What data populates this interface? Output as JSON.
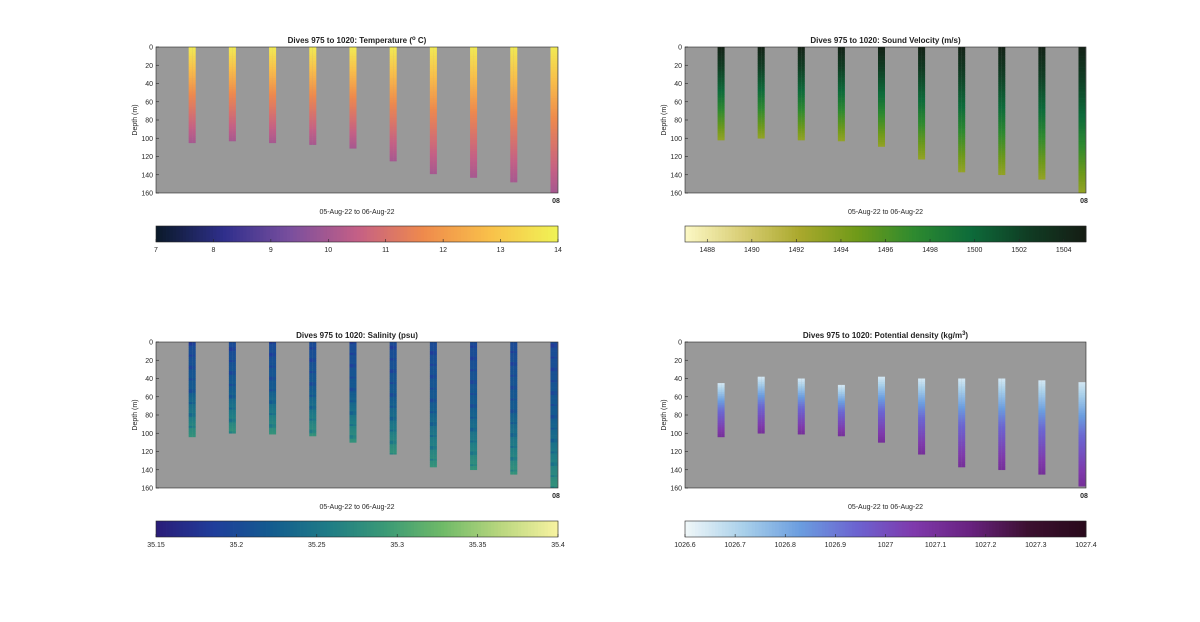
{
  "chart_data": [
    {
      "id": "temperature",
      "type": "heatmap",
      "title": "Dives 975 to 1020: Temperature (",
      "title_sup": "o",
      "title_tail": " C)",
      "ylabel": "Depth (m)",
      "xlabel": "05-Aug-22 to 06-Aug-22",
      "xtick_label": "08",
      "ylim": [
        0,
        160
      ],
      "yticks": [
        "0",
        "20",
        "40",
        "60",
        "80",
        "100",
        "120",
        "140",
        "160"
      ],
      "colormap": [
        "#0b1a2b",
        "#2f2f8c",
        "#7a4f9e",
        "#c45f86",
        "#ef8a4c",
        "#f9c04a",
        "#f0f255"
      ],
      "clim": [
        7,
        14
      ],
      "colorbar_ticks": [
        "7",
        "8",
        "9",
        "10",
        "11",
        "12",
        "13",
        "14"
      ],
      "background": "#999999",
      "casts": [
        {
          "t": 0.09,
          "bottom": 105,
          "surface": 13.8,
          "mid": 11.6,
          "deep": 10.0
        },
        {
          "t": 0.19,
          "bottom": 103,
          "surface": 13.8,
          "mid": 11.6,
          "deep": 10.0
        },
        {
          "t": 0.29,
          "bottom": 105,
          "surface": 13.8,
          "mid": 11.6,
          "deep": 10.0
        },
        {
          "t": 0.39,
          "bottom": 107,
          "surface": 13.8,
          "mid": 11.6,
          "deep": 10.0
        },
        {
          "t": 0.49,
          "bottom": 111,
          "surface": 13.8,
          "mid": 11.6,
          "deep": 10.0
        },
        {
          "t": 0.59,
          "bottom": 125,
          "surface": 13.8,
          "mid": 11.6,
          "deep": 10.0
        },
        {
          "t": 0.69,
          "bottom": 139,
          "surface": 13.8,
          "mid": 11.6,
          "deep": 10.0
        },
        {
          "t": 0.79,
          "bottom": 143,
          "surface": 13.8,
          "mid": 11.6,
          "deep": 10.0
        },
        {
          "t": 0.89,
          "bottom": 148,
          "surface": 13.8,
          "mid": 11.6,
          "deep": 10.0
        },
        {
          "t": 0.99,
          "bottom": 160,
          "surface": 13.8,
          "mid": 11.6,
          "deep": 10.0
        }
      ]
    },
    {
      "id": "sound-velocity",
      "type": "heatmap",
      "title": "Dives 975 to 1020: Sound Velocity (m/s)",
      "ylabel": "Depth (m)",
      "xlabel": "05-Aug-22 to 06-Aug-22",
      "xtick_label": "08",
      "ylim": [
        0,
        160
      ],
      "yticks": [
        "0",
        "20",
        "40",
        "60",
        "80",
        "100",
        "120",
        "140",
        "160"
      ],
      "colormap": [
        "#fbf7c3",
        "#d8cd73",
        "#a9a82c",
        "#6f9a19",
        "#2e8a2f",
        "#0d6b3a",
        "#103d24",
        "#151d14"
      ],
      "clim": [
        1487,
        1505
      ],
      "colorbar_ticks": [
        "1488",
        "1490",
        "1492",
        "1494",
        "1496",
        "1498",
        "1500",
        "1502",
        "1504"
      ],
      "background": "#999999",
      "casts": [
        {
          "t": 0.09,
          "bottom": 102,
          "surface": 1504.5,
          "mid": 1499.5,
          "deep": 1493.0
        },
        {
          "t": 0.19,
          "bottom": 100,
          "surface": 1504.5,
          "mid": 1499.5,
          "deep": 1493.0
        },
        {
          "t": 0.29,
          "bottom": 102,
          "surface": 1504.5,
          "mid": 1499.5,
          "deep": 1493.0
        },
        {
          "t": 0.39,
          "bottom": 103,
          "surface": 1504.5,
          "mid": 1499.5,
          "deep": 1493.0
        },
        {
          "t": 0.49,
          "bottom": 109,
          "surface": 1504.5,
          "mid": 1499.5,
          "deep": 1493.0
        },
        {
          "t": 0.59,
          "bottom": 123,
          "surface": 1504.5,
          "mid": 1499.5,
          "deep": 1493.0
        },
        {
          "t": 0.69,
          "bottom": 137,
          "surface": 1504.5,
          "mid": 1499.5,
          "deep": 1493.0
        },
        {
          "t": 0.79,
          "bottom": 140,
          "surface": 1504.5,
          "mid": 1499.5,
          "deep": 1493.0
        },
        {
          "t": 0.89,
          "bottom": 145,
          "surface": 1504.5,
          "mid": 1499.5,
          "deep": 1493.0
        },
        {
          "t": 0.99,
          "bottom": 160,
          "surface": 1504.5,
          "mid": 1499.5,
          "deep": 1493.0
        }
      ]
    },
    {
      "id": "salinity",
      "type": "heatmap",
      "title": "Dives 975 to 1020: Salinity (psu)",
      "ylabel": "Depth (m)",
      "xlabel": "05-Aug-22 to 06-Aug-22",
      "xtick_label": "08",
      "ylim": [
        0,
        160
      ],
      "yticks": [
        "0",
        "20",
        "40",
        "60",
        "80",
        "100",
        "120",
        "140",
        "160"
      ],
      "colormap": [
        "#2a1d79",
        "#1f3e9b",
        "#135c8f",
        "#1f7c86",
        "#3b9a76",
        "#6fba68",
        "#b8d67e",
        "#f6f2a0"
      ],
      "clim": [
        35.15,
        35.4
      ],
      "colorbar_ticks": [
        "35.15",
        "35.2",
        "35.25",
        "35.3",
        "35.35",
        "35.4"
      ],
      "background": "#999999",
      "casts": [
        {
          "t": 0.09,
          "bottom": 104,
          "surface": 35.2,
          "mid": 35.22,
          "deep": 35.285
        },
        {
          "t": 0.19,
          "bottom": 100,
          "surface": 35.2,
          "mid": 35.22,
          "deep": 35.285
        },
        {
          "t": 0.29,
          "bottom": 101,
          "surface": 35.2,
          "mid": 35.22,
          "deep": 35.285
        },
        {
          "t": 0.39,
          "bottom": 103,
          "surface": 35.2,
          "mid": 35.22,
          "deep": 35.285
        },
        {
          "t": 0.49,
          "bottom": 110,
          "surface": 35.2,
          "mid": 35.22,
          "deep": 35.285
        },
        {
          "t": 0.59,
          "bottom": 123,
          "surface": 35.2,
          "mid": 35.22,
          "deep": 35.285
        },
        {
          "t": 0.69,
          "bottom": 137,
          "surface": 35.2,
          "mid": 35.22,
          "deep": 35.285
        },
        {
          "t": 0.79,
          "bottom": 140,
          "surface": 35.2,
          "mid": 35.22,
          "deep": 35.285
        },
        {
          "t": 0.89,
          "bottom": 145,
          "surface": 35.2,
          "mid": 35.22,
          "deep": 35.285
        },
        {
          "t": 0.99,
          "bottom": 160,
          "surface": 35.2,
          "mid": 35.22,
          "deep": 35.285
        }
      ]
    },
    {
      "id": "potential-density",
      "type": "heatmap",
      "title": "Dives 975 to 1020: Potential density (kg/m",
      "title_sup": "3",
      "title_tail": ")",
      "ylabel": "Depth (m)",
      "xlabel": "05-Aug-22 to 06-Aug-22",
      "xtick_label": "08",
      "ylim": [
        0,
        160
      ],
      "yticks": [
        "0",
        "20",
        "40",
        "60",
        "80",
        "100",
        "120",
        "140",
        "160"
      ],
      "colormap": [
        "#eef6f8",
        "#a9d0ea",
        "#6b9ddf",
        "#6c63d0",
        "#7f39ac",
        "#68227f",
        "#3c1030",
        "#2a0a1c"
      ],
      "clim": [
        1026.6,
        1027.4
      ],
      "colorbar_ticks": [
        "1026.6",
        "1026.7",
        "1026.8",
        "1026.9",
        "1027",
        "1027.1",
        "1027.2",
        "1027.3",
        "1027.4"
      ],
      "background": "#999999",
      "casts": [
        {
          "t": 0.09,
          "top": 45,
          "bottom": 104,
          "surface": 1026.65,
          "mid": 1026.93,
          "deep": 1027.11
        },
        {
          "t": 0.19,
          "top": 38,
          "bottom": 100,
          "surface": 1026.65,
          "mid": 1026.93,
          "deep": 1027.11
        },
        {
          "t": 0.29,
          "top": 40,
          "bottom": 101,
          "surface": 1026.65,
          "mid": 1026.93,
          "deep": 1027.11
        },
        {
          "t": 0.39,
          "top": 47,
          "bottom": 103,
          "surface": 1026.65,
          "mid": 1026.93,
          "deep": 1027.11
        },
        {
          "t": 0.49,
          "top": 38,
          "bottom": 110,
          "surface": 1026.65,
          "mid": 1026.93,
          "deep": 1027.11
        },
        {
          "t": 0.59,
          "top": 40,
          "bottom": 123,
          "surface": 1026.65,
          "mid": 1026.93,
          "deep": 1027.11
        },
        {
          "t": 0.69,
          "top": 40,
          "bottom": 137,
          "surface": 1026.65,
          "mid": 1026.93,
          "deep": 1027.11
        },
        {
          "t": 0.79,
          "top": 40,
          "bottom": 140,
          "surface": 1026.65,
          "mid": 1026.93,
          "deep": 1027.11
        },
        {
          "t": 0.89,
          "top": 42,
          "bottom": 145,
          "surface": 1026.65,
          "mid": 1026.93,
          "deep": 1027.11
        },
        {
          "t": 0.99,
          "top": 44,
          "bottom": 158,
          "surface": 1026.65,
          "mid": 1026.93,
          "deep": 1027.11
        }
      ]
    }
  ]
}
